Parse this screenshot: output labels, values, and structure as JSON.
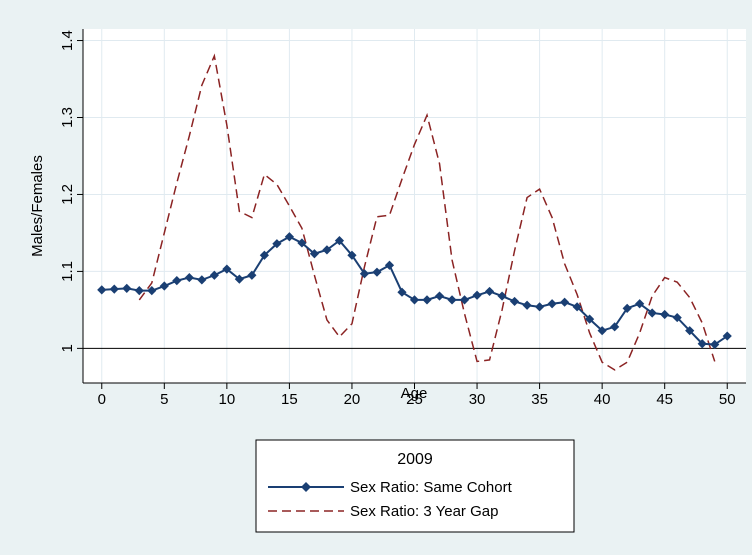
{
  "chart_data": {
    "type": "line",
    "title": "",
    "xlabel": "Age",
    "ylabel": "Males/Females",
    "xlim": [
      -1.5,
      51.5
    ],
    "ylim": [
      0.955,
      1.415
    ],
    "x_ticks": [
      0,
      5,
      10,
      15,
      20,
      25,
      30,
      35,
      40,
      45,
      50
    ],
    "y_ticks": [
      1,
      1.1,
      1.2,
      1.3,
      1.4
    ],
    "y_tick_labels": [
      "1",
      "1.1",
      "1.2",
      "1.3",
      "1.4"
    ],
    "reference_line": 1,
    "grid": true,
    "legend": {
      "title": "2009",
      "position": "bottom-center"
    },
    "colors": {
      "same_cohort": "#1a3f73",
      "gap": "#8b2323",
      "plot_bg": "#ffffff",
      "outer_bg": "#eaf2f3",
      "grid": "#e0eaf0"
    },
    "x": [
      0,
      1,
      2,
      3,
      4,
      5,
      6,
      7,
      8,
      9,
      10,
      11,
      12,
      13,
      14,
      15,
      16,
      17,
      18,
      19,
      20,
      21,
      22,
      23,
      24,
      25,
      26,
      27,
      28,
      29,
      30,
      31,
      32,
      33,
      34,
      35,
      36,
      37,
      38,
      39,
      40,
      41,
      42,
      43,
      44,
      45,
      46,
      47,
      48,
      49,
      50
    ],
    "series": [
      {
        "name": "Sex Ratio: Same Cohort",
        "style": "solid-diamond",
        "values": [
          1.076,
          1.077,
          1.078,
          1.075,
          1.075,
          1.081,
          1.088,
          1.092,
          1.089,
          1.095,
          1.103,
          1.09,
          1.095,
          1.121,
          1.136,
          1.145,
          1.137,
          1.123,
          1.128,
          1.14,
          1.121,
          1.097,
          1.099,
          1.108,
          1.073,
          1.063,
          1.063,
          1.068,
          1.063,
          1.063,
          1.069,
          1.074,
          1.068,
          1.061,
          1.056,
          1.054,
          1.058,
          1.06,
          1.054,
          1.038,
          1.023,
          1.028,
          1.052,
          1.058,
          1.046,
          1.044,
          1.04,
          1.023,
          1.006,
          1.005,
          1.016
        ]
      },
      {
        "name": "Sex Ratio: 3 Year Gap",
        "style": "dashed",
        "values": [
          null,
          null,
          null,
          1.063,
          1.085,
          1.15,
          1.215,
          1.276,
          1.342,
          1.38,
          1.29,
          1.178,
          1.17,
          1.226,
          1.213,
          1.185,
          1.156,
          1.095,
          1.037,
          1.015,
          1.032,
          1.106,
          1.171,
          1.173,
          1.22,
          1.265,
          1.303,
          1.24,
          1.115,
          1.045,
          0.983,
          0.985,
          1.05,
          1.127,
          1.196,
          1.207,
          1.17,
          1.11,
          1.07,
          1.02,
          0.982,
          0.972,
          0.982,
          1.02,
          1.068,
          1.092,
          1.086,
          1.066,
          1.033,
          0.983,
          null
        ]
      }
    ]
  }
}
